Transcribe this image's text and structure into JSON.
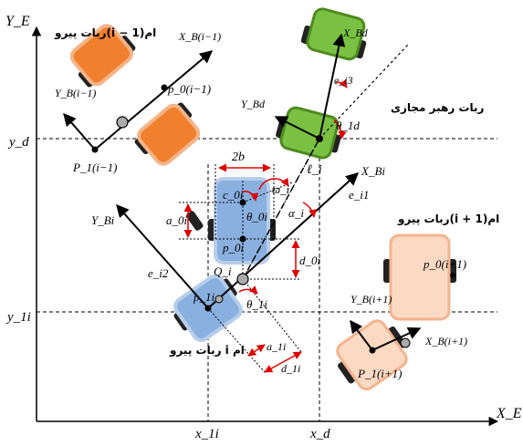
{
  "axes": {
    "x_axis_label": "X_E",
    "y_axis_label": "Y_E"
  },
  "guides": {
    "yd": "y_d",
    "y1i": "y_1i",
    "x1i": "x_1i",
    "xd": "x_d"
  },
  "captions": {
    "prev_robot": "ربات پیرو(i − 1)ام",
    "next_robot": "ربات پیرو(i + 1)ام",
    "leader": "ربات رهبر مجازی",
    "follower": "ربات پیرو i ام"
  },
  "prev": {
    "xb": "X_B(i−1)",
    "yb": "Y_B(i−1)",
    "p0": "p_0(i−1)",
    "p1": "P_1(i−1)"
  },
  "leader": {
    "xbd": "X_Bd",
    "ybd": "Y_Bd",
    "theta": "θ_1d",
    "ei3": "e_i3"
  },
  "follower": {
    "twob": "2b",
    "c0i": "c_0i",
    "theta0i": "θ_0i",
    "a0i": "a_0i",
    "p0i": "p_0i",
    "d0i": "d_0i",
    "Qi": "Q_i",
    "p1i": "p_1i",
    "theta1i": "θ_1i",
    "a1i": "a_1i",
    "d1i": "d_1i",
    "ybi": "Y_Bi",
    "xbi": "X_Bi",
    "ei2": "e_i2",
    "ei1": "e_i1",
    "alpha": "α_i",
    "varpi": "ϖ_i",
    "ell": "ℓ_i"
  },
  "next": {
    "ybn": "Y_B(i+1)",
    "xbn": "X_B(i+1)",
    "p0n": "p_0(i+1)",
    "p1n": "P_1(i+1)"
  },
  "colors": {
    "orange_fill": "#f07f2e",
    "orange_stroke": "#f5b487",
    "green_fill": "#7ac143",
    "green_stroke": "#4d8a1f",
    "blue_fill": "#8ab0e0",
    "blue_stroke": "#b7cdea",
    "peach_fill": "#fbd9c3",
    "peach_stroke": "#f4b48f",
    "annotation_red": "#e00000"
  }
}
